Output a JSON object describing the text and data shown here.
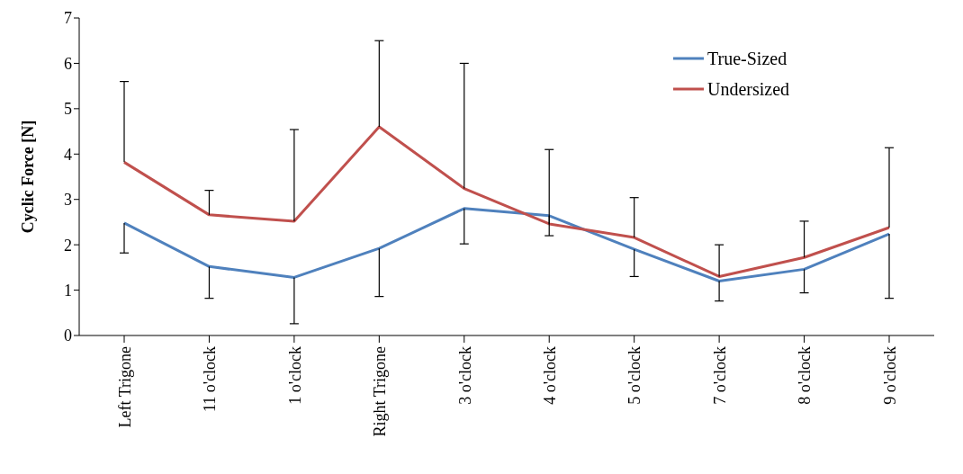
{
  "chart_data": {
    "type": "line",
    "ylabel": "Cyclic Force [N]",
    "categories": [
      "Left Trigone",
      "11 o'clock",
      "1 o'clock",
      "Right Trigone",
      "3 o'clock",
      "4 o'clock",
      "5 o'clock",
      "7 o'clock",
      "8 o'clock",
      "9 o'clock"
    ],
    "series": [
      {
        "name": "True-Sized",
        "color": "#4f81bd",
        "values": [
          2.48,
          1.52,
          1.28,
          1.92,
          2.8,
          2.64,
          1.9,
          1.2,
          1.46,
          2.24
        ],
        "errors": [
          [
            1.82,
            2.48
          ],
          [
            0.82,
            1.52
          ],
          [
            0.26,
            1.28
          ],
          [
            0.86,
            1.92
          ],
          [
            2.02,
            2.8
          ],
          [
            2.2,
            2.64
          ],
          [
            1.3,
            1.9
          ],
          [
            0.76,
            1.2
          ],
          [
            0.94,
            1.46
          ],
          [
            0.82,
            2.24
          ]
        ]
      },
      {
        "name": "Undersized",
        "color": "#c0504d",
        "values": [
          3.82,
          2.66,
          2.52,
          4.6,
          3.24,
          2.46,
          2.16,
          1.3,
          1.72,
          2.38
        ],
        "errors": [
          [
            3.82,
            5.6
          ],
          [
            2.66,
            3.2
          ],
          [
            2.52,
            4.54
          ],
          [
            4.6,
            6.5
          ],
          [
            3.24,
            6.0
          ],
          [
            2.46,
            4.1
          ],
          [
            2.16,
            3.04
          ],
          [
            1.3,
            2.0
          ],
          [
            1.72,
            2.52
          ],
          [
            2.38,
            4.14
          ]
        ]
      }
    ],
    "ylim": [
      0,
      7
    ],
    "yticks": [
      0,
      1,
      2,
      3,
      4,
      5,
      6,
      7
    ],
    "grid": false,
    "legend": "top right",
    "marker": "none",
    "line_style": "solid"
  }
}
